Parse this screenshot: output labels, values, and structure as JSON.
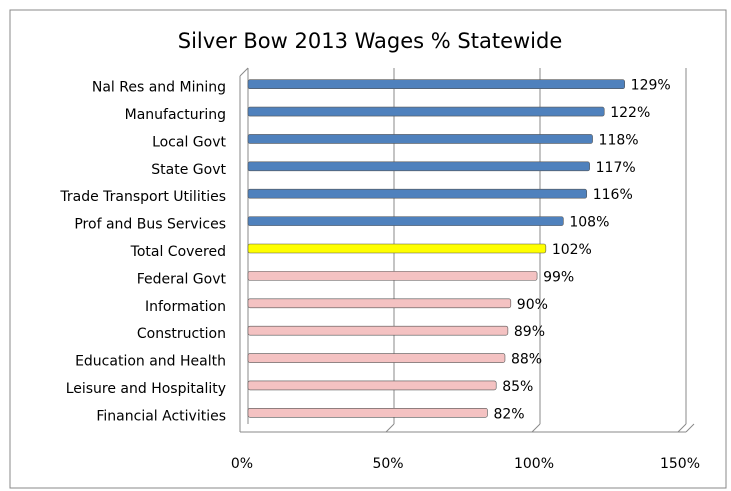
{
  "chart_data": {
    "type": "hbar",
    "title": "Silver Bow 2013 Wages % Statewide",
    "categories": [
      "Nal Res and Mining",
      "Manufacturing",
      "Local Govt",
      "State Govt",
      "Trade Transport Utilities",
      "Prof and Bus Services",
      "Total Covered",
      "Federal Govt",
      "Information",
      "Construction",
      "Education and Health",
      "Leisure and Hospitality",
      "Financial Activities"
    ],
    "values": [
      129,
      122,
      118,
      117,
      116,
      108,
      102,
      99,
      90,
      89,
      88,
      85,
      82
    ],
    "value_labels": [
      "129%",
      "122%",
      "118%",
      "117%",
      "116%",
      "108%",
      "102%",
      "99%",
      "90%",
      "89%",
      "88%",
      "85%",
      "82%"
    ],
    "colors": [
      "#4f81bd",
      "#4f81bd",
      "#4f81bd",
      "#4f81bd",
      "#4f81bd",
      "#4f81bd",
      "#ffff00",
      "#f4c2c2",
      "#f4c2c2",
      "#f4c2c2",
      "#f4c2c2",
      "#f4c2c2",
      "#f4c2c2"
    ],
    "label_colors": [
      "#000000",
      "#000000",
      "#000000",
      "#000000",
      "#000000",
      "#000000",
      "#ff0000",
      "#000000",
      "#000000",
      "#000000",
      "#000000",
      "#000000",
      "#000000"
    ],
    "xlim": [
      0,
      150
    ],
    "xticks": [
      {
        "value": 0,
        "label": "0%"
      },
      {
        "value": 50,
        "label": "50%"
      },
      {
        "value": 100,
        "label": "100%"
      },
      {
        "value": 150,
        "label": "150%"
      }
    ],
    "grid": true
  }
}
